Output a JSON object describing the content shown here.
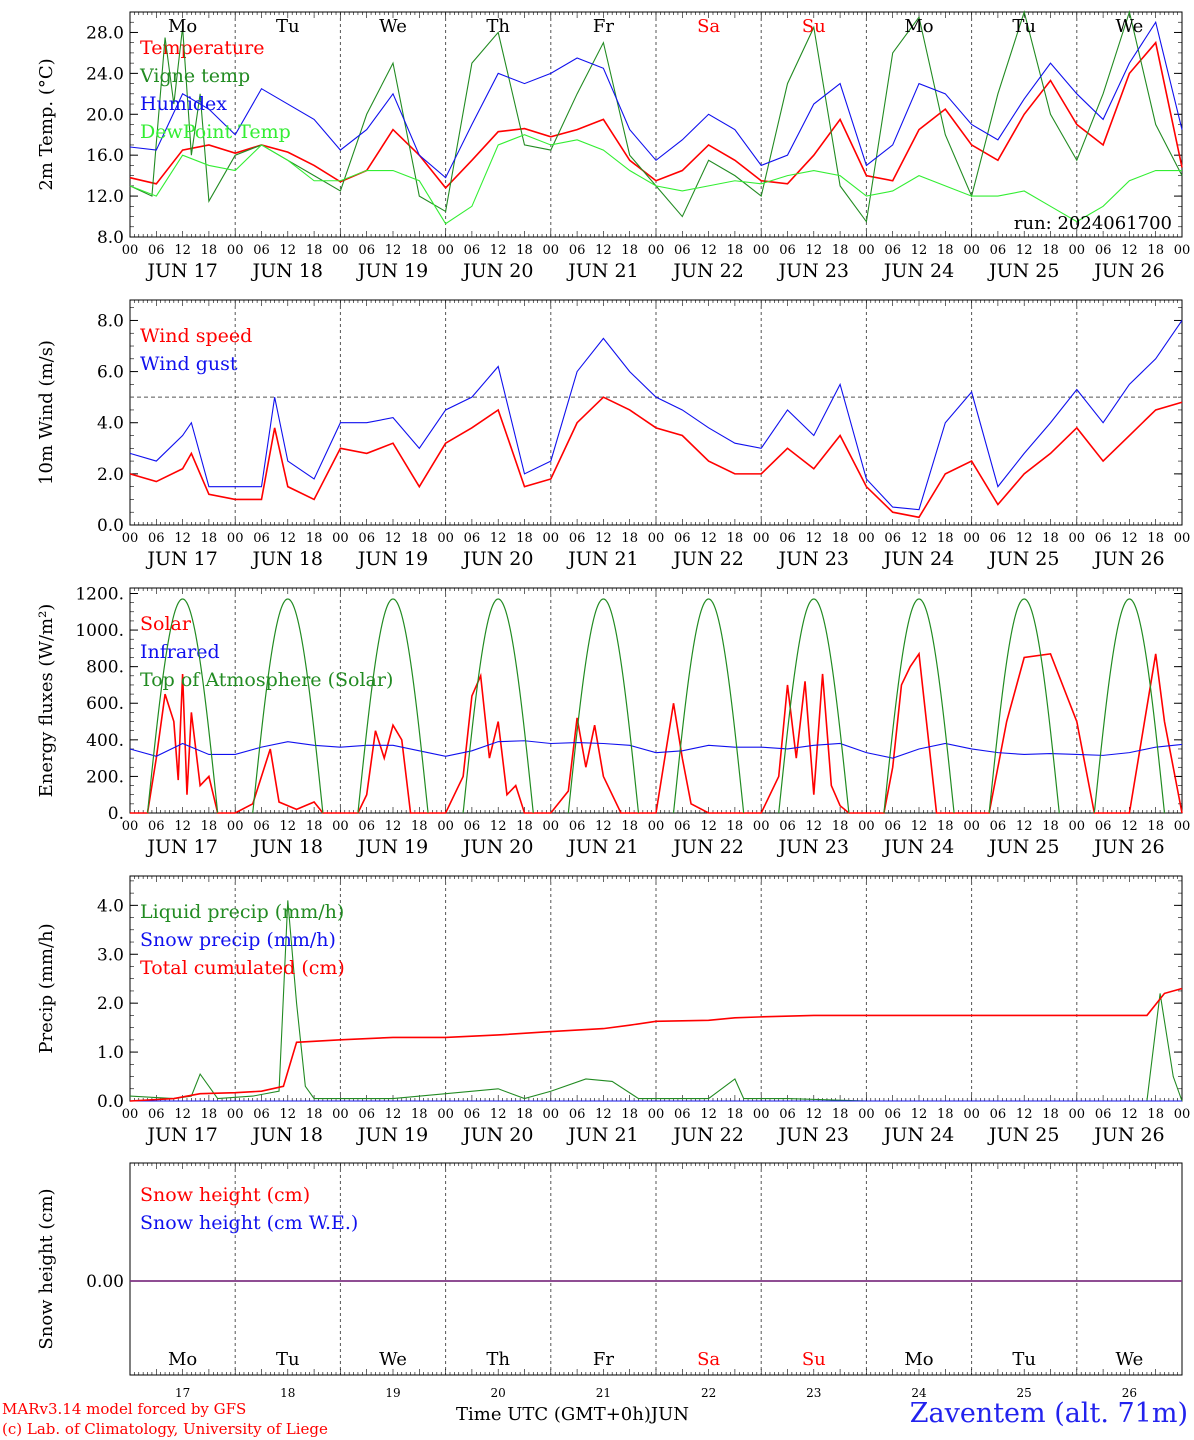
{
  "footer": {
    "model_line": "MARv3.14 model forced by GFS",
    "lab_line": "(c) Lab. of Climatology, University of Liege",
    "time_label": "Time UTC (GMT+0h)",
    "month_label": "JUN",
    "station": "Zaventem (alt. 71m)"
  },
  "colors": {
    "red": "#ff0000",
    "green": "#228b22",
    "blue": "#1010ee",
    "lightgreen": "#33ee33",
    "weekend": "#ff0000",
    "purple": "#6a3d9a"
  },
  "day_names": [
    "Mo",
    "Tu",
    "We",
    "Th",
    "Fr",
    "Sa",
    "Su",
    "Mo",
    "Tu",
    "We"
  ],
  "weekend_flags": [
    false,
    false,
    false,
    false,
    false,
    true,
    true,
    false,
    false,
    false
  ],
  "day_labels": [
    "JUN 17",
    "JUN 18",
    "JUN 19",
    "JUN 20",
    "JUN 21",
    "JUN 22",
    "JUN 23",
    "JUN 24",
    "JUN 25",
    "JUN 26"
  ],
  "day_numbers": [
    "17",
    "18",
    "19",
    "20",
    "21",
    "22",
    "23",
    "24",
    "25",
    "26"
  ],
  "hour_ticks": [
    "00",
    "06",
    "12",
    "18"
  ],
  "chart_data": [
    {
      "type": "line",
      "ylabel": "2m Temp. (°C)",
      "ylim": [
        8,
        30
      ],
      "yticks": [
        "8.0",
        "12.0",
        "16.0",
        "20.0",
        "24.0",
        "28.0"
      ],
      "x_unit": "hours since JUN 17 00 UTC",
      "annotation": "run: 2024061700",
      "series": [
        {
          "name": "Temperature",
          "color": "red",
          "x": [
            0,
            6,
            12,
            18,
            24,
            30,
            36,
            42,
            48,
            54,
            60,
            66,
            72,
            78,
            84,
            90,
            96,
            102,
            108,
            114,
            120,
            126,
            132,
            138,
            144,
            150,
            156,
            162,
            168,
            174,
            180,
            186,
            192,
            198,
            204,
            210,
            216,
            222,
            228,
            234,
            240
          ],
          "values": [
            13.8,
            13.2,
            16.5,
            17.0,
            16.2,
            17.0,
            16.3,
            15.0,
            13.4,
            14.5,
            18.5,
            16.0,
            12.8,
            15.5,
            18.3,
            18.6,
            17.8,
            18.5,
            19.5,
            15.5,
            13.5,
            14.5,
            17.0,
            15.5,
            13.5,
            13.2,
            16.0,
            19.5,
            14.0,
            13.5,
            18.5,
            20.5,
            17.0,
            15.5,
            20.0,
            23.3,
            19.0,
            17.0,
            24.0,
            27.0,
            14.8
          ]
        },
        {
          "name": "Vigne temp",
          "color": "green",
          "x": [
            0,
            5,
            8,
            10,
            12,
            14,
            16,
            18,
            24,
            30,
            36,
            42,
            48,
            54,
            60,
            66,
            72,
            78,
            84,
            90,
            96,
            102,
            108,
            114,
            120,
            126,
            132,
            138,
            144,
            150,
            156,
            162,
            168,
            174,
            180,
            186,
            192,
            198,
            204,
            210,
            216,
            222,
            228,
            234,
            240
          ],
          "values": [
            13.0,
            12.0,
            27.5,
            21.0,
            28.5,
            16.0,
            22.0,
            11.5,
            16.0,
            17.0,
            15.5,
            14.0,
            12.5,
            20.0,
            25.0,
            12.0,
            10.5,
            25.0,
            28.0,
            17.0,
            16.5,
            22.0,
            27.0,
            16.0,
            13.0,
            10.0,
            15.5,
            14.0,
            12.0,
            23.0,
            28.5,
            13.0,
            9.5,
            26.0,
            29.5,
            18.0,
            12.0,
            22.0,
            30.0,
            20.0,
            15.5,
            22.0,
            30.0,
            19.0,
            14.0
          ]
        },
        {
          "name": "Humidex",
          "color": "blue",
          "x": [
            0,
            6,
            12,
            18,
            24,
            30,
            36,
            42,
            48,
            54,
            60,
            66,
            72,
            78,
            84,
            90,
            96,
            102,
            108,
            114,
            120,
            126,
            132,
            138,
            144,
            150,
            156,
            162,
            168,
            174,
            180,
            186,
            192,
            198,
            204,
            210,
            216,
            222,
            228,
            234,
            240
          ],
          "values": [
            16.8,
            16.5,
            22.0,
            20.5,
            18.0,
            22.5,
            21.0,
            19.5,
            16.5,
            18.5,
            22.0,
            16.0,
            13.8,
            19.0,
            24.0,
            23.0,
            24.0,
            25.5,
            24.5,
            18.5,
            15.5,
            17.5,
            20.0,
            18.5,
            15.0,
            16.0,
            21.0,
            23.0,
            15.0,
            17.0,
            23.0,
            22.0,
            19.0,
            17.5,
            21.5,
            25.0,
            22.0,
            19.5,
            25.0,
            29.0,
            18.5
          ]
        },
        {
          "name": "DewPoint Temp",
          "color": "lightgreen",
          "x": [
            0,
            6,
            12,
            18,
            24,
            30,
            36,
            42,
            48,
            54,
            60,
            66,
            72,
            78,
            84,
            90,
            96,
            102,
            108,
            114,
            120,
            126,
            132,
            138,
            144,
            150,
            156,
            162,
            168,
            174,
            180,
            186,
            192,
            198,
            204,
            210,
            216,
            222,
            228,
            234,
            240
          ],
          "values": [
            13.0,
            12.0,
            16.0,
            15.0,
            14.5,
            17.0,
            15.5,
            13.5,
            13.5,
            14.5,
            14.5,
            13.5,
            9.3,
            11.0,
            17.0,
            18.0,
            17.0,
            17.5,
            16.5,
            14.5,
            13.0,
            12.5,
            13.0,
            13.5,
            13.2,
            14.0,
            14.5,
            14.0,
            12.0,
            12.5,
            14.0,
            13.0,
            12.0,
            12.0,
            12.5,
            11.0,
            9.5,
            11.0,
            13.5,
            14.5,
            14.5
          ]
        }
      ]
    },
    {
      "type": "line",
      "ylabel": "10m Wind (m/s)",
      "ylim": [
        0,
        8.8
      ],
      "yticks": [
        "0.0",
        "2.0",
        "4.0",
        "6.0",
        "8.0"
      ],
      "reference_line": 5.0,
      "series": [
        {
          "name": "Wind speed",
          "color": "red",
          "x": [
            0,
            6,
            12,
            14,
            18,
            24,
            30,
            33,
            36,
            42,
            48,
            54,
            60,
            66,
            72,
            78,
            84,
            90,
            96,
            102,
            108,
            114,
            120,
            126,
            132,
            138,
            144,
            150,
            156,
            162,
            168,
            174,
            180,
            186,
            192,
            198,
            204,
            210,
            216,
            222,
            228,
            234,
            240
          ],
          "values": [
            2.0,
            1.7,
            2.2,
            2.8,
            1.2,
            1.0,
            1.0,
            3.8,
            1.5,
            1.0,
            3.0,
            2.8,
            3.2,
            1.5,
            3.2,
            3.8,
            4.5,
            1.5,
            1.8,
            4.0,
            5.0,
            4.5,
            3.8,
            3.5,
            2.5,
            2.0,
            2.0,
            3.0,
            2.2,
            3.5,
            1.5,
            0.5,
            0.3,
            2.0,
            2.5,
            0.8,
            2.0,
            2.8,
            3.8,
            2.5,
            3.5,
            4.5,
            4.8
          ]
        },
        {
          "name": "Wind gust",
          "color": "blue",
          "x": [
            0,
            6,
            12,
            14,
            18,
            24,
            30,
            33,
            36,
            42,
            48,
            54,
            60,
            66,
            72,
            78,
            84,
            90,
            96,
            102,
            108,
            114,
            120,
            126,
            132,
            138,
            144,
            150,
            156,
            162,
            168,
            174,
            180,
            186,
            192,
            198,
            204,
            210,
            216,
            222,
            228,
            234,
            240
          ],
          "values": [
            2.8,
            2.5,
            3.5,
            4.0,
            1.5,
            1.5,
            1.5,
            5.0,
            2.5,
            1.8,
            4.0,
            4.0,
            4.2,
            3.0,
            4.5,
            5.0,
            6.2,
            2.0,
            2.5,
            6.0,
            7.3,
            6.0,
            5.0,
            4.5,
            3.8,
            3.2,
            3.0,
            4.5,
            3.5,
            5.5,
            1.8,
            0.7,
            0.6,
            4.0,
            5.2,
            1.5,
            2.8,
            4.0,
            5.3,
            4.0,
            5.5,
            6.5,
            8.0
          ]
        }
      ]
    },
    {
      "type": "line",
      "ylabel": "Energy fluxes (W/m²)",
      "ylim": [
        0,
        1230
      ],
      "yticks": [
        "0.",
        "200.",
        "400.",
        "600.",
        "800.",
        "1000.",
        "1200."
      ],
      "series": [
        {
          "name": "Solar",
          "color": "red",
          "x": [
            0,
            4,
            6,
            8,
            10,
            11,
            12,
            13,
            14,
            16,
            18,
            20,
            24,
            28,
            32,
            34,
            38,
            42,
            44,
            48,
            52,
            54,
            56,
            58,
            60,
            62,
            64,
            68,
            72,
            76,
            78,
            80,
            82,
            84,
            86,
            88,
            90,
            92,
            96,
            100,
            102,
            104,
            106,
            108,
            110,
            112,
            114,
            116,
            120,
            124,
            126,
            128,
            132,
            136,
            140,
            144,
            148,
            150,
            152,
            154,
            156,
            158,
            160,
            162,
            164,
            168,
            172,
            174,
            176,
            178,
            180,
            184,
            188,
            192,
            196,
            200,
            204,
            210,
            216,
            220,
            222,
            228,
            234,
            236,
            240
          ],
          "values": [
            0,
            0,
            300,
            650,
            500,
            180,
            760,
            100,
            550,
            150,
            200,
            0,
            0,
            50,
            350,
            60,
            20,
            60,
            0,
            0,
            0,
            100,
            450,
            300,
            480,
            400,
            0,
            0,
            0,
            200,
            640,
            750,
            300,
            500,
            100,
            150,
            0,
            0,
            0,
            120,
            520,
            250,
            480,
            200,
            100,
            0,
            0,
            0,
            0,
            600,
            300,
            50,
            0,
            0,
            0,
            0,
            200,
            700,
            300,
            720,
            100,
            760,
            150,
            40,
            0,
            0,
            0,
            250,
            700,
            800,
            870,
            0,
            0,
            0,
            0,
            500,
            850,
            870,
            500,
            0,
            0,
            0,
            870,
            500,
            0
          ]
        },
        {
          "name": "Infrared",
          "color": "blue",
          "x": [
            0,
            6,
            12,
            18,
            24,
            30,
            36,
            42,
            48,
            54,
            60,
            66,
            72,
            78,
            84,
            90,
            96,
            102,
            108,
            114,
            120,
            126,
            132,
            138,
            144,
            150,
            156,
            162,
            168,
            174,
            180,
            186,
            192,
            198,
            204,
            210,
            216,
            222,
            228,
            234,
            240
          ],
          "values": [
            350,
            310,
            380,
            320,
            320,
            360,
            390,
            370,
            360,
            370,
            370,
            340,
            310,
            340,
            390,
            395,
            380,
            385,
            380,
            370,
            330,
            340,
            370,
            360,
            360,
            350,
            370,
            380,
            330,
            300,
            350,
            380,
            350,
            330,
            320,
            325,
            320,
            315,
            330,
            360,
            375
          ]
        },
        {
          "name": "Top of Atmosphere (Solar)",
          "color": "green",
          "diurnal": true,
          "peak": 1170,
          "sunrise_h": 4,
          "sunset_h": 20,
          "noon_h": 12
        }
      ]
    },
    {
      "type": "line",
      "ylabel": "Precip (mm/h)",
      "ylim": [
        0,
        4.6
      ],
      "yticks": [
        "0.0",
        "1.0",
        "2.0",
        "3.0",
        "4.0"
      ],
      "series": [
        {
          "name": "Liquid precip (mm/h)",
          "color": "green",
          "x": [
            0,
            10,
            14,
            16,
            20,
            28,
            34,
            36,
            38,
            40,
            42,
            48,
            60,
            84,
            90,
            96,
            104,
            110,
            116,
            120,
            132,
            138,
            140,
            142,
            150,
            168,
            210,
            232,
            235,
            238,
            240
          ],
          "values": [
            0.1,
            0.05,
            0.1,
            0.55,
            0.05,
            0.1,
            0.2,
            4.1,
            2.0,
            0.3,
            0.05,
            0.05,
            0.05,
            0.25,
            0.05,
            0.2,
            0.45,
            0.4,
            0.05,
            0.05,
            0.05,
            0.45,
            0.05,
            0.05,
            0.05,
            0.0,
            0.0,
            0.0,
            2.2,
            0.5,
            0.0
          ]
        },
        {
          "name": "Snow precip (mm/h)",
          "color": "blue",
          "x": [
            0,
            240
          ],
          "values": [
            0,
            0
          ]
        },
        {
          "name": "Total cumulated (cm)",
          "color": "red",
          "x": [
            0,
            10,
            16,
            24,
            30,
            35,
            38,
            48,
            60,
            72,
            84,
            96,
            108,
            114,
            120,
            132,
            138,
            144,
            156,
            168,
            192,
            216,
            232,
            236,
            240
          ],
          "values": [
            0.0,
            0.05,
            0.15,
            0.17,
            0.2,
            0.3,
            1.2,
            1.25,
            1.3,
            1.3,
            1.35,
            1.42,
            1.48,
            1.55,
            1.63,
            1.65,
            1.7,
            1.72,
            1.75,
            1.75,
            1.75,
            1.75,
            1.75,
            2.2,
            2.3
          ]
        }
      ]
    },
    {
      "type": "line",
      "ylabel": "Snow height (cm)",
      "yticks": [
        "0.00"
      ],
      "series": [
        {
          "name": "Snow height (cm)",
          "color": "red",
          "x": [
            0,
            240
          ],
          "values": [
            0,
            0
          ]
        },
        {
          "name": "Snow height (cm W.E.)",
          "color": "blue",
          "x": [
            0,
            240
          ],
          "values": [
            0,
            0
          ]
        }
      ]
    }
  ]
}
